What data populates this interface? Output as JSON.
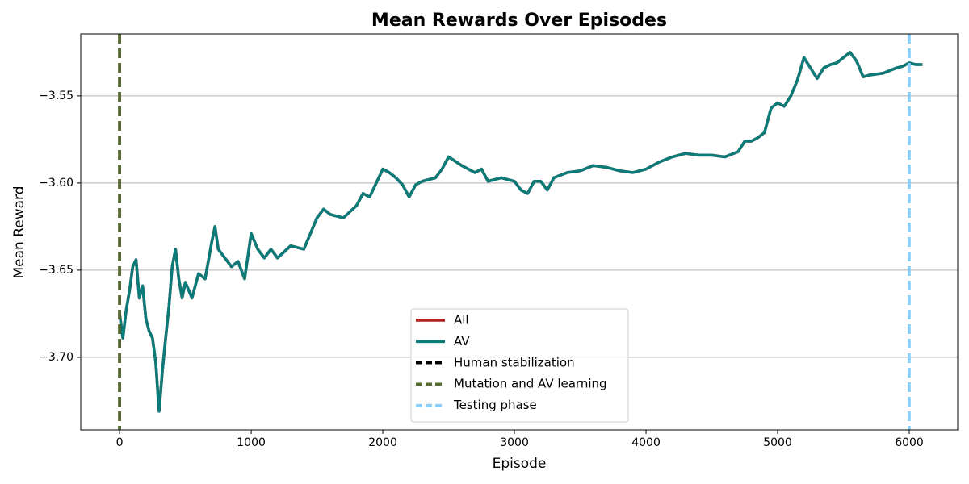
{
  "chart_data": {
    "type": "line",
    "title": "Mean Rewards Over Episodes",
    "x_label": "Episode",
    "y_label": "Mean Reward",
    "x": [
      0,
      25,
      50,
      75,
      100,
      125,
      150,
      175,
      200,
      225,
      250,
      275,
      300,
      325,
      350,
      375,
      400,
      425,
      450,
      475,
      500,
      550,
      600,
      650,
      700,
      725,
      750,
      800,
      850,
      900,
      950,
      1000,
      1050,
      1100,
      1150,
      1200,
      1300,
      1400,
      1450,
      1500,
      1550,
      1600,
      1700,
      1800,
      1850,
      1900,
      2000,
      2050,
      2100,
      2150,
      2200,
      2250,
      2300,
      2400,
      2450,
      2500,
      2600,
      2700,
      2750,
      2800,
      2900,
      3000,
      3050,
      3100,
      3150,
      3200,
      3250,
      3300,
      3400,
      3500,
      3600,
      3700,
      3800,
      3900,
      4000,
      4100,
      4200,
      4300,
      4400,
      4500,
      4600,
      4700,
      4750,
      4800,
      4850,
      4900,
      4950,
      5000,
      5050,
      5100,
      5150,
      5200,
      5250,
      5300,
      5350,
      5400,
      5450,
      5500,
      5550,
      5600,
      5650,
      5700,
      5800,
      5900,
      5950,
      6000,
      6050,
      6100
    ],
    "series": [
      {
        "name": "All",
        "color": "#b22222",
        "values": [
          -3.675,
          -3.689,
          -3.673,
          -3.662,
          -3.648,
          -3.644,
          -3.666,
          -3.659,
          -3.678,
          -3.685,
          -3.689,
          -3.703,
          -3.731,
          -3.708,
          -3.689,
          -3.671,
          -3.648,
          -3.638,
          -3.655,
          -3.666,
          -3.657,
          -3.666,
          -3.652,
          -3.655,
          -3.634,
          -3.625,
          -3.638,
          -3.643,
          -3.648,
          -3.645,
          -3.655,
          -3.629,
          -3.638,
          -3.643,
          -3.638,
          -3.643,
          -3.636,
          -3.638,
          -3.629,
          -3.62,
          -3.615,
          -3.618,
          -3.62,
          -3.613,
          -3.606,
          -3.608,
          -3.592,
          -3.594,
          -3.597,
          -3.601,
          -3.608,
          -3.601,
          -3.599,
          -3.597,
          -3.592,
          -3.585,
          -3.59,
          -3.594,
          -3.592,
          -3.599,
          -3.597,
          -3.599,
          -3.604,
          -3.606,
          -3.599,
          -3.599,
          -3.604,
          -3.597,
          -3.594,
          -3.593,
          -3.59,
          -3.591,
          -3.593,
          -3.594,
          -3.592,
          -3.588,
          -3.585,
          -3.583,
          -3.584,
          -3.584,
          -3.585,
          -3.582,
          -3.576,
          -3.576,
          -3.574,
          -3.571,
          -3.557,
          -3.554,
          -3.556,
          -3.55,
          -3.541,
          -3.528,
          -3.534,
          -3.54,
          -3.534,
          -3.532,
          -3.531,
          -3.528,
          -3.525,
          -3.53,
          -3.539,
          -3.538,
          -3.537,
          -3.534,
          -3.533,
          -3.531,
          -3.532,
          -3.532
        ]
      },
      {
        "name": "AV",
        "color": "#0a7b78",
        "values": [
          -3.675,
          -3.689,
          -3.673,
          -3.662,
          -3.648,
          -3.644,
          -3.666,
          -3.659,
          -3.678,
          -3.685,
          -3.689,
          -3.703,
          -3.731,
          -3.708,
          -3.689,
          -3.671,
          -3.648,
          -3.638,
          -3.655,
          -3.666,
          -3.657,
          -3.666,
          -3.652,
          -3.655,
          -3.634,
          -3.625,
          -3.638,
          -3.643,
          -3.648,
          -3.645,
          -3.655,
          -3.629,
          -3.638,
          -3.643,
          -3.638,
          -3.643,
          -3.636,
          -3.638,
          -3.629,
          -3.62,
          -3.615,
          -3.618,
          -3.62,
          -3.613,
          -3.606,
          -3.608,
          -3.592,
          -3.594,
          -3.597,
          -3.601,
          -3.608,
          -3.601,
          -3.599,
          -3.597,
          -3.592,
          -3.585,
          -3.59,
          -3.594,
          -3.592,
          -3.599,
          -3.597,
          -3.599,
          -3.604,
          -3.606,
          -3.599,
          -3.599,
          -3.604,
          -3.597,
          -3.594,
          -3.593,
          -3.59,
          -3.591,
          -3.593,
          -3.594,
          -3.592,
          -3.588,
          -3.585,
          -3.583,
          -3.584,
          -3.584,
          -3.585,
          -3.582,
          -3.576,
          -3.576,
          -3.574,
          -3.571,
          -3.557,
          -3.554,
          -3.556,
          -3.55,
          -3.541,
          -3.528,
          -3.534,
          -3.54,
          -3.534,
          -3.532,
          -3.531,
          -3.528,
          -3.525,
          -3.53,
          -3.539,
          -3.538,
          -3.537,
          -3.534,
          -3.533,
          -3.531,
          -3.532,
          -3.532
        ]
      }
    ],
    "vlines": [
      {
        "name": "Human stabilization",
        "color": "#000000",
        "x": 0
      },
      {
        "name": "Mutation and AV learning",
        "color": "#556b2f",
        "x": 0
      },
      {
        "name": "Testing phase",
        "color": "#87cefa",
        "x": 6000
      }
    ],
    "xlim": [
      -295,
      6368
    ],
    "ylim": [
      -3.7417,
      -3.5144
    ],
    "xticks": [
      0,
      1000,
      2000,
      3000,
      4000,
      5000,
      6000
    ],
    "yticks": [
      {
        "value": -3.7,
        "label": "−3.70"
      },
      {
        "value": -3.65,
        "label": "−3.65"
      },
      {
        "value": -3.6,
        "label": "−3.60"
      },
      {
        "value": -3.55,
        "label": "−3.55"
      }
    ],
    "grid": "y",
    "legend": "lower center"
  }
}
